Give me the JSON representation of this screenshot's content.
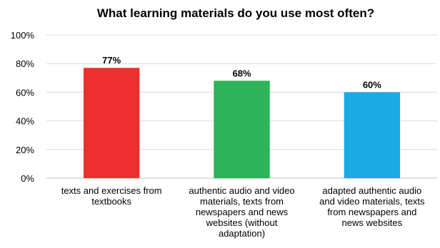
{
  "chart_data": {
    "type": "bar",
    "title": "What learning materials do you use most often?",
    "xlabel": "",
    "ylabel": "",
    "ylim": [
      0,
      100
    ],
    "yticks": [
      0,
      20,
      40,
      60,
      80,
      100
    ],
    "tick_suffix": "%",
    "grid": true,
    "legend": "none",
    "categories": [
      [
        "texts and exercises from",
        "textbooks"
      ],
      [
        "authentic audio and video",
        "materials, texts from",
        "newspapers and news",
        "websites (without",
        "adaptation)"
      ],
      [
        "adapted authentic audio",
        "and video materials, texts",
        "from newspapers and",
        "news websites"
      ]
    ],
    "values": [
      77,
      68,
      60
    ],
    "data_labels": [
      "77%",
      "68%",
      "60%"
    ],
    "colors": [
      "#ee2f2f",
      "#2db359",
      "#1aabe4"
    ]
  }
}
